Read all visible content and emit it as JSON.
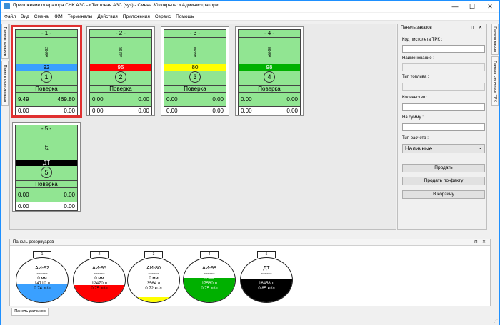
{
  "window": {
    "title": "Приложение оператора СНК АЗС -> Тестовая АЗС (sys) - Смена 30 открыта: <Администратор>",
    "min": "—",
    "max": "☐",
    "close": "✕"
  },
  "menu": [
    "Файл",
    "Вид",
    "Смена",
    "ККМ",
    "Терминалы",
    "Действия",
    "Приложения",
    "Сервис",
    "Помощь"
  ],
  "left_tabs": [
    "Панель товаров",
    "Панель резервуаров"
  ],
  "right_tabs": [
    "Панель кассы",
    "Панель счетчиков ТРК"
  ],
  "pumps": [
    {
      "header": "- 1 -",
      "fuel_label": "АИ-92",
      "fuel": "92",
      "color": "#3aa0ff",
      "text_color": "#000",
      "num": "1",
      "status": "Поверка",
      "v1": "9.49",
      "v2": "469.80",
      "w1": "0.00",
      "w2": "0.00",
      "selected": true
    },
    {
      "header": "- 2 -",
      "fuel_label": "АИ-95",
      "fuel": "95",
      "color": "#ff0000",
      "text_color": "#fff",
      "num": "2",
      "status": "Поверка",
      "v1": "0.00",
      "v2": "0.00",
      "w1": "0.00",
      "w2": "0.00",
      "selected": false
    },
    {
      "header": "- 3 -",
      "fuel_label": "АИ-80",
      "fuel": "80",
      "color": "#ffff00",
      "text_color": "#000",
      "num": "3",
      "status": "Поверка",
      "v1": "0.00",
      "v2": "0.00",
      "w1": "0.00",
      "w2": "0.00",
      "selected": false
    },
    {
      "header": "- 4 -",
      "fuel_label": "АИ-98",
      "fuel": "98",
      "color": "#00b000",
      "text_color": "#fff",
      "num": "4",
      "status": "Поверка",
      "v1": "0.00",
      "v2": "0.00",
      "w1": "0.00",
      "w2": "0.00",
      "selected": false
    },
    {
      "header": "- 5 -",
      "fuel_label": "ДТ",
      "fuel": "ДТ",
      "color": "#000000",
      "text_color": "#fff",
      "num": "5",
      "status": "Поверка",
      "v1": "0.00",
      "v2": "0.00",
      "w1": "0.00",
      "w2": "0.00",
      "selected": false
    }
  ],
  "order_panel": {
    "title": "Панель заказов",
    "pin": "⊓",
    "close": "✕",
    "code_label": "Код пистолета ТРК :",
    "name_label": "Наименование :",
    "fuel_type_label": "Тип топлива :",
    "qty_label": "Количество :",
    "sum_label": "На сумму :",
    "calc_label": "Тип расчета :",
    "calc_value": "Наличные",
    "sell": "Продать",
    "sell_fact": "Продать по-факту",
    "to_cart": "В корзину"
  },
  "reservoirs": {
    "title": "Панель резервуаров",
    "pin": "⊓",
    "close": "✕",
    "tanks": [
      {
        "cap": "1",
        "name": "АИ-92",
        "dash": "---------",
        "l1": "0 мм",
        "l2": "14710 л",
        "l3": "0.74 кг/л",
        "color": "#3aa0ff",
        "level": 0.42,
        "dark": false
      },
      {
        "cap": "2",
        "name": "АИ-95",
        "dash": "---------",
        "l1": "0 мм",
        "l2": "12470 л",
        "l3": "0.75 кг/л",
        "color": "#ff0000",
        "level": 0.38,
        "dark": false
      },
      {
        "cap": "3",
        "name": "АИ-80",
        "dash": "---------",
        "l1": "0 мм",
        "l2": "3564 л",
        "l3": "0.72 кг/л",
        "color": "#ffff00",
        "level": 0.12,
        "dark": false
      },
      {
        "cap": "4",
        "name": "АИ-98",
        "dash": "---------",
        "l1": "0 мм",
        "l2": "17560 л",
        "l3": "0.75 кг/л",
        "color": "#00b000",
        "level": 0.55,
        "dark": true
      },
      {
        "cap": "5",
        "name": "ДТ",
        "dash": "---------",
        "l1": "0 мм",
        "l2": "16458 л",
        "l3": "0.85 кг/л",
        "color": "#000000",
        "level": 0.52,
        "dark": true
      }
    ]
  },
  "bottom_tab": "Панель датчиков"
}
